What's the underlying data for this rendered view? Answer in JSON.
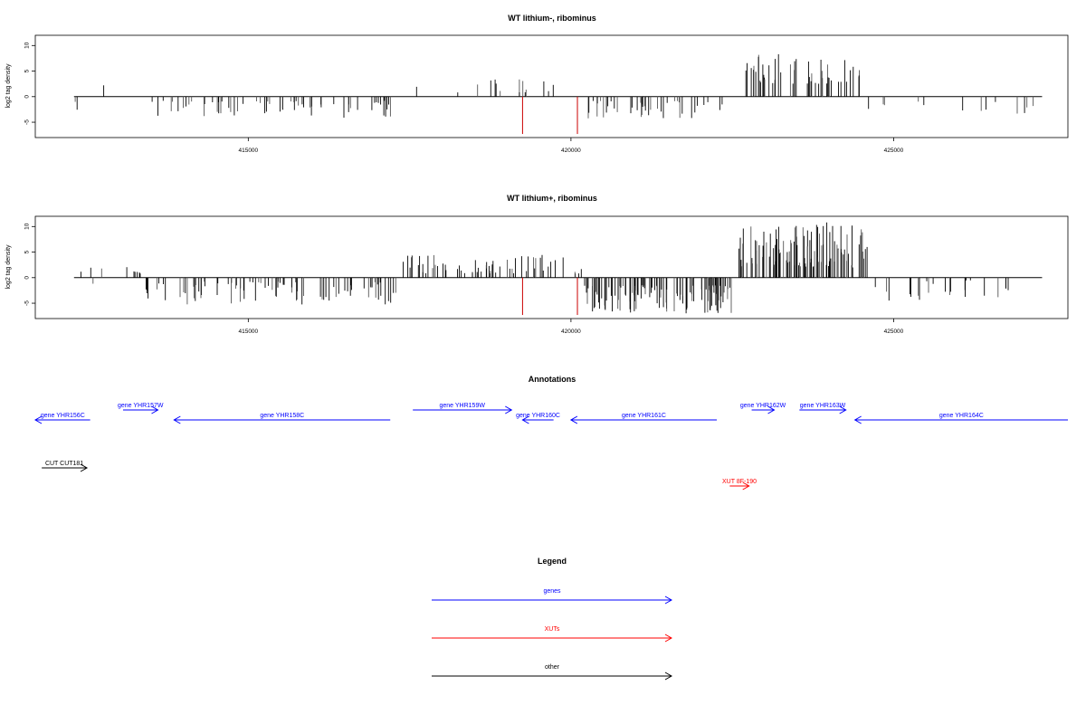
{
  "chart_data": [
    {
      "type": "bar",
      "title": "WT lithium-, ribominus",
      "xlabel": "",
      "ylabel": "log2 tag density",
      "xlim": [
        411700,
        427700
      ],
      "ylim": [
        -8,
        12
      ],
      "xticks": [
        415000,
        420000,
        425000
      ],
      "xtick_labels": [
        "415000",
        "420000",
        "425000"
      ],
      "yticks": [
        -5,
        0,
        5,
        10
      ],
      "ytick_labels": [
        "-5",
        "0",
        "5",
        "10"
      ],
      "baseline": {
        "x_start": 412300,
        "x_end": 427300,
        "y": 0
      },
      "segments": [
        {
          "start": 412300,
          "end": 412800,
          "kind": "neg",
          "min": 1.0,
          "max": 3.0,
          "density": 5
        },
        {
          "start": 412300,
          "end": 412900,
          "kind": "pos",
          "min": 0.8,
          "max": 3.8,
          "density": 3
        },
        {
          "start": 413500,
          "end": 417400,
          "kind": "neg",
          "min": 0.8,
          "max": 4.2,
          "density": 22
        },
        {
          "start": 417600,
          "end": 419900,
          "kind": "pos",
          "min": 0.8,
          "max": 3.8,
          "density": 9
        },
        {
          "start": 420200,
          "end": 422400,
          "kind": "neg",
          "min": 0.8,
          "max": 4.5,
          "density": 26
        },
        {
          "start": 422700,
          "end": 423500,
          "kind": "pos",
          "min": 2.5,
          "max": 8.5,
          "density": 45
        },
        {
          "start": 423600,
          "end": 424500,
          "kind": "pos",
          "min": 2.5,
          "max": 7.5,
          "density": 40
        },
        {
          "start": 424600,
          "end": 427300,
          "kind": "neg",
          "min": 0.5,
          "max": 3.5,
          "density": 7
        }
      ],
      "red_marks": [
        {
          "x": 419250,
          "y": -7.3
        },
        {
          "x": 420100,
          "y": -7.3
        }
      ]
    },
    {
      "type": "bar",
      "title": "WT lithium+, ribominus",
      "xlabel": "",
      "ylabel": "log2 tag density",
      "xlim": [
        411700,
        427700
      ],
      "ylim": [
        -8,
        12
      ],
      "xticks": [
        415000,
        420000,
        425000
      ],
      "xtick_labels": [
        "415000",
        "420000",
        "425000"
      ],
      "yticks": [
        -5,
        0,
        5,
        10
      ],
      "ytick_labels": [
        "-5",
        "0",
        "5",
        "10"
      ],
      "baseline": {
        "x_start": 412300,
        "x_end": 427300,
        "y": 0
      },
      "segments": [
        {
          "start": 412300,
          "end": 413400,
          "kind": "pos",
          "min": 0.8,
          "max": 3.2,
          "density": 12
        },
        {
          "start": 412300,
          "end": 412600,
          "kind": "neg",
          "min": 0.8,
          "max": 2.5,
          "density": 4
        },
        {
          "start": 413400,
          "end": 417400,
          "kind": "neg",
          "min": 0.8,
          "max": 5.5,
          "density": 30
        },
        {
          "start": 417400,
          "end": 420200,
          "kind": "pos",
          "min": 0.8,
          "max": 4.5,
          "density": 30
        },
        {
          "start": 420200,
          "end": 422500,
          "kind": "neg",
          "min": 1.5,
          "max": 7.0,
          "density": 70
        },
        {
          "start": 422600,
          "end": 424600,
          "kind": "pos",
          "min": 2.0,
          "max": 10.8,
          "density": 75
        },
        {
          "start": 424700,
          "end": 427300,
          "kind": "neg",
          "min": 0.5,
          "max": 4.5,
          "density": 12
        }
      ],
      "red_marks": [
        {
          "x": 419250,
          "y": -7.3
        },
        {
          "x": 420100,
          "y": -7.3
        }
      ]
    }
  ],
  "annotations": {
    "title": "Annotations",
    "items": [
      {
        "label": "gene YHR156C",
        "start": 411700,
        "end": 412550,
        "strand": "-",
        "color": "#0000ff",
        "row": 1
      },
      {
        "label": "gene YHR157W",
        "start": 413060,
        "end": 413600,
        "strand": "+",
        "color": "#0000ff",
        "row": 0
      },
      {
        "label": "gene YHR158C",
        "start": 413850,
        "end": 417200,
        "strand": "-",
        "color": "#0000ff",
        "row": 1
      },
      {
        "label": "gene YHR159W",
        "start": 417550,
        "end": 419080,
        "strand": "+",
        "color": "#0000ff",
        "row": 0
      },
      {
        "label": "gene YHR160C",
        "start": 419250,
        "end": 419730,
        "strand": "-",
        "color": "#0000ff",
        "row": 1
      },
      {
        "label": "gene YHR161C",
        "start": 420000,
        "end": 422260,
        "strand": "-",
        "color": "#0000ff",
        "row": 1
      },
      {
        "label": "gene YHR162W",
        "start": 422800,
        "end": 423150,
        "strand": "+",
        "color": "#0000ff",
        "row": 0
      },
      {
        "label": "gene YHR163W",
        "start": 423540,
        "end": 424260,
        "strand": "+",
        "color": "#0000ff",
        "row": 0
      },
      {
        "label": "gene YHR164C",
        "start": 424400,
        "end": 427700,
        "strand": "-",
        "color": "#0000ff",
        "row": 1
      },
      {
        "label": "CUT CUT181",
        "start": 411800,
        "end": 412500,
        "strand": "+",
        "color": "#000000",
        "row": 3
      },
      {
        "label": "XUT 8F-190",
        "start": 422460,
        "end": 422760,
        "strand": "+",
        "color": "#ff0000",
        "row": 4
      }
    ]
  },
  "legend": {
    "title": "Legend",
    "items": [
      {
        "label": "genes",
        "color": "#0000ff"
      },
      {
        "label": "XUTs",
        "color": "#ff0000"
      },
      {
        "label": "other",
        "color": "#000000"
      }
    ]
  }
}
